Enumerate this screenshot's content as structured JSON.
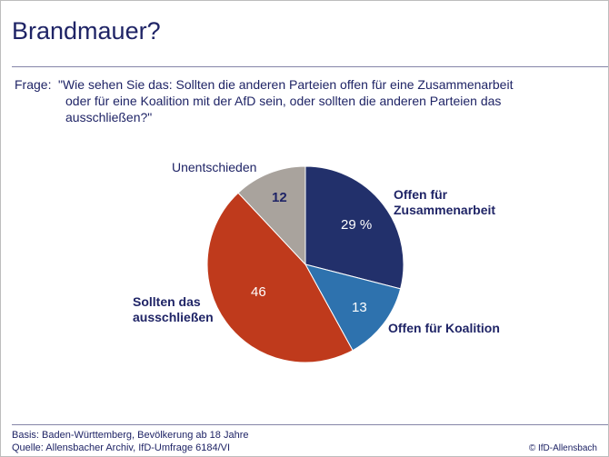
{
  "header": {
    "title": "Brandmauer?"
  },
  "question": {
    "label": "Frage:",
    "lines": [
      "\"Wie sehen Sie das: Sollten die anderen Parteien offen für eine Zusammenarbeit",
      "oder für eine Koalition mit der AfD sein, oder sollten die anderen Parteien das",
      "ausschließen?\""
    ]
  },
  "chart_data": {
    "type": "pie",
    "title": "",
    "unit": "%",
    "slices": [
      {
        "label": "Offen für Zusammenarbeit",
        "label_lines": [
          "Offen für",
          "Zusammenarbeit"
        ],
        "value": 29,
        "value_label": "29 %",
        "color": "#22306b"
      },
      {
        "label": "Offen für Koalition",
        "label_lines": [
          "Offen für Koalition"
        ],
        "value": 13,
        "value_label": "13",
        "color": "#2e72ae"
      },
      {
        "label": "Sollten das ausschließen",
        "label_lines": [
          "Sollten das",
          "ausschließen"
        ],
        "value": 46,
        "value_label": "46",
        "color": "#bf3a1c"
      },
      {
        "label": "Unentschieden",
        "label_lines": [
          "Unentschieden"
        ],
        "value": 12,
        "value_label": "12",
        "color": "#a9a39d"
      }
    ]
  },
  "footer": {
    "basis": "Basis: Baden-Württemberg, Bevölkerung ab 18 Jahre",
    "source": "Quelle: Allensbacher Archiv, IfD-Umfrage 6184/VI",
    "copyright": "© IfD-Allensbach"
  }
}
